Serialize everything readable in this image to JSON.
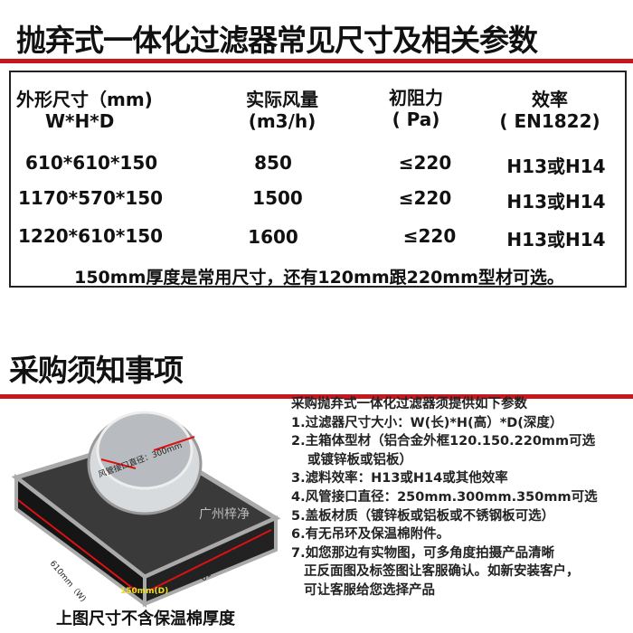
{
  "title": "抛弃式一体化过滤器常见尺寸及相关参数",
  "table": {
    "headers": [
      {
        "line1": "外形尺寸（mm)",
        "line2": "W*H*D"
      },
      {
        "line1": "实际风量",
        "line2": "(m3/h)"
      },
      {
        "line1": "初阻力",
        "line2": "( Pa)"
      },
      {
        "line1": "效率",
        "line2": "( EN1822)"
      }
    ],
    "rows": [
      [
        "610*610*150",
        "850",
        "≤220",
        "H13或H14"
      ],
      [
        "1170*570*150",
        "1500",
        "≤220",
        "H13或H14"
      ],
      [
        "1220*610*150",
        "1600",
        "≤220",
        "H13或H14"
      ]
    ],
    "note": "150mm厚度是常用尺寸，还有120mm跟220mm型材可选。"
  },
  "section2": {
    "title": "采购须知事项",
    "intro": "采购抛弃式一体化过滤器须提供如下参数",
    "items": [
      "1.过滤器尺寸大小：W(长)*H(高）*D(深度）",
      "2.主箱体型材（铝合金外框120.150.220mm可选",
      "或镀锌板或铝板）",
      "3.滤料效率：H13或H14或其他效率",
      "4.风管接口直径：250mm.300mm.350mm可选",
      "5.盖板材质（镀锌板或铝板或不锈钢板可选）",
      "6.有无吊环及保温棉附件。",
      "7.如您那边有实物图，可多角度拍摄产品清晰",
      "正反面图及标签图让客服确认。如新安装客户，",
      "可让客服给您选择产品"
    ],
    "image": {
      "duct_label": "风管接口直径：300mm",
      "watermark": "广州梓净",
      "w_label": "610mm（W)",
      "h_label": "610mm(H)",
      "d_label": "150mm(D)"
    },
    "caption": "上图尺寸不含保温棉厚度"
  },
  "colors": {
    "accent": "#c8161d",
    "dim_label": "#f0e020"
  }
}
